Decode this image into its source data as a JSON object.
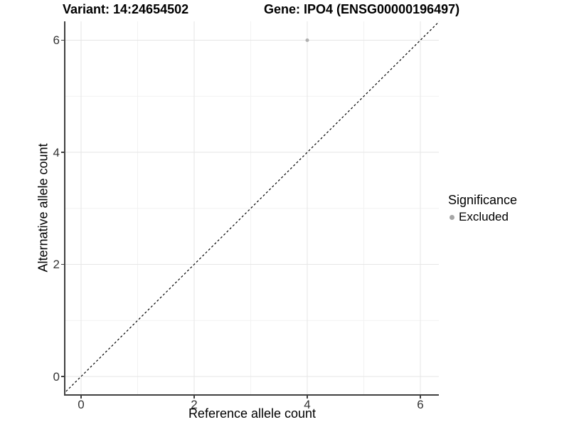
{
  "titles": {
    "variant": "Variant: 14:24654502",
    "gene": "Gene: IPO4 (ENSG00000196497)"
  },
  "x_axis": {
    "label": "Reference allele count",
    "ticks": [
      {
        "value": 0,
        "label": "0"
      },
      {
        "value": 2,
        "label": "2"
      },
      {
        "value": 4,
        "label": "4"
      },
      {
        "value": 6,
        "label": "6"
      }
    ]
  },
  "y_axis": {
    "label": "Alternative allele count",
    "ticks": [
      {
        "value": 0,
        "label": "0"
      },
      {
        "value": 2,
        "label": "2"
      },
      {
        "value": 4,
        "label": "4"
      },
      {
        "value": 6,
        "label": "6"
      }
    ]
  },
  "legend": {
    "title": "Significance",
    "items": [
      {
        "label": "Excluded",
        "color": "#a6a6a6"
      }
    ]
  },
  "colors": {
    "grid_major": "#e6e6e6",
    "grid_minor": "#f2f2f2",
    "axis_line": "#404040",
    "tick_label": "#333333",
    "reference_line": "#000000",
    "point": "#b0b0b0"
  },
  "chart_data": {
    "type": "scatter",
    "title": "Variant: 14:24654502 | Gene: IPO4 (ENSG00000196497)",
    "xlabel": "Reference allele count",
    "ylabel": "Alternative allele count",
    "xlim": [
      -0.32,
      6.35
    ],
    "ylim": [
      -0.32,
      6.35
    ],
    "x_major_gridlines": [
      0,
      2,
      4,
      6
    ],
    "x_minor_gridlines": [
      1,
      3,
      5
    ],
    "y_major_gridlines": [
      0,
      2,
      4,
      6
    ],
    "y_minor_gridlines": [
      1,
      3,
      5
    ],
    "grid": "on",
    "legend_position": "right",
    "series": [
      {
        "name": "Excluded",
        "color": "#b0b0b0",
        "marker_radius": 2.5,
        "points": [
          {
            "x": 4,
            "y": 6
          }
        ]
      }
    ],
    "reference_line": {
      "equation": "y = x",
      "style": "dashed",
      "color": "#000000",
      "from": {
        "x": -0.32,
        "y": -0.32
      },
      "to": {
        "x": 6.35,
        "y": 6.35
      }
    }
  }
}
